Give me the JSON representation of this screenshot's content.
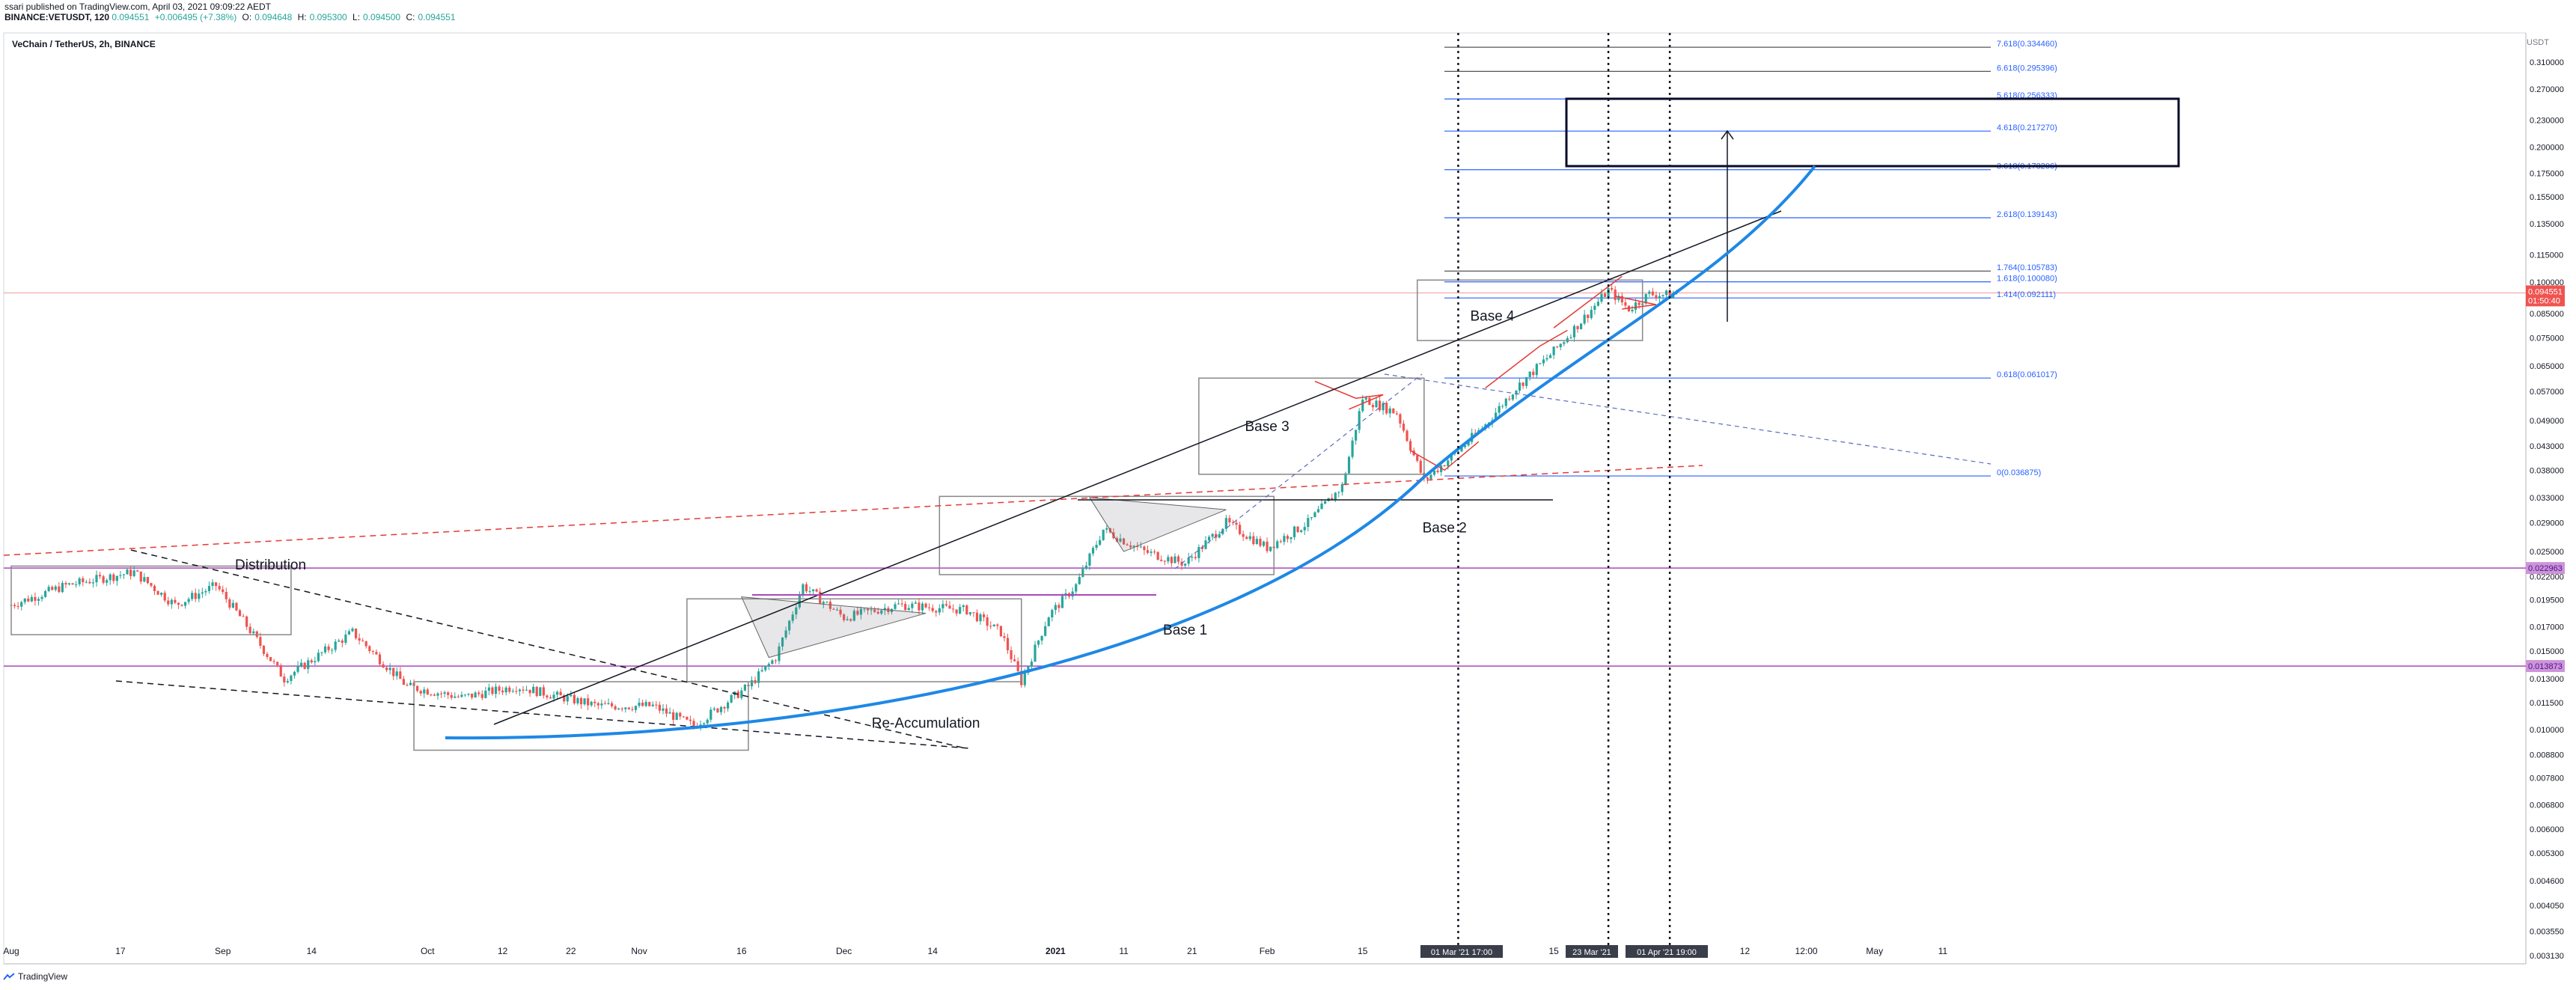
{
  "header": {
    "published": "ssari published on TradingView.com, April 03, 2021 09:09:22 AEDT",
    "symbol_line": "BINANCE:VETUSDT, 120",
    "last": "0.094551",
    "change": "+0.006495 (+7.38%)",
    "o_label": "O:",
    "o_val": "0.094648",
    "h_label": "H:",
    "h_val": "0.095300",
    "l_label": "L:",
    "l_val": "0.094500",
    "c_label": "C:",
    "c_val": "0.094551"
  },
  "footer": {
    "brand": "TradingView"
  },
  "colors": {
    "candle_up": "#26a69a",
    "candle_down": "#ef5350",
    "fib": "#2962ff",
    "parabola": "#1e88e5",
    "magenta": "#ab47bc",
    "box": "#888888"
  },
  "chart_data": {
    "type": "candlestick",
    "title": "VeChain / TetherUS, 2h, BINANCE",
    "axis_unit": "USDT",
    "y_scale": "log",
    "ylim": [
      0.003,
      0.36
    ],
    "y_ticks": [
      "0.310000",
      "0.270000",
      "0.230000",
      "0.200000",
      "0.175000",
      "0.155000",
      "0.135000",
      "0.115000",
      "0.100000",
      "0.085000",
      "0.075000",
      "0.065000",
      "0.057000",
      "0.049000",
      "0.043000",
      "0.038000",
      "0.033000",
      "0.029000",
      "0.025000",
      "0.022000",
      "0.019500",
      "0.017000",
      "0.015000",
      "0.013000",
      "0.011500",
      "0.010000",
      "0.008800",
      "0.007800",
      "0.006800",
      "0.006000",
      "0.005300",
      "0.004600",
      "0.004050",
      "0.003550",
      "0.003130"
    ],
    "y_tick_values": [
      0.31,
      0.27,
      0.23,
      0.2,
      0.175,
      0.155,
      0.135,
      0.115,
      0.1,
      0.085,
      0.075,
      0.065,
      0.057,
      0.049,
      0.043,
      0.038,
      0.033,
      0.029,
      0.025,
      0.022,
      0.0195,
      0.017,
      0.015,
      0.013,
      0.0115,
      0.01,
      0.0088,
      0.0078,
      0.0068,
      0.006,
      0.0053,
      0.0046,
      0.00405,
      0.00355,
      0.00313
    ],
    "x_ticks": [
      {
        "label": "Aug",
        "day": 0
      },
      {
        "label": "17",
        "day": 16
      },
      {
        "label": "Sep",
        "day": 31
      },
      {
        "label": "14",
        "day": 44
      },
      {
        "label": "Oct",
        "day": 61
      },
      {
        "label": "12",
        "day": 72
      },
      {
        "label": "22",
        "day": 82
      },
      {
        "label": "Nov",
        "day": 92
      },
      {
        "label": "16",
        "day": 107
      },
      {
        "label": "Dec",
        "day": 122
      },
      {
        "label": "14",
        "day": 135
      },
      {
        "label": "2021",
        "day": 153
      },
      {
        "label": "11",
        "day": 163
      },
      {
        "label": "21",
        "day": 173
      },
      {
        "label": "Feb",
        "day": 184
      },
      {
        "label": "15",
        "day": 198
      },
      {
        "label": "15",
        "day": 226
      },
      {
        "label": "12",
        "day": 254
      },
      {
        "label": "12:00",
        "day": 263
      },
      {
        "label": "May",
        "day": 273
      },
      {
        "label": "11",
        "day": 283
      }
    ],
    "last_price": {
      "value": 0.094551,
      "label": "0.094551",
      "countdown": "01:50:40"
    },
    "price_markers": [
      {
        "value": 0.022963,
        "label": "0.022963"
      },
      {
        "value": 0.013873,
        "label": "0.013873"
      }
    ],
    "fib_levels": [
      {
        "label": "7.618(0.334460)",
        "value": 0.33446
      },
      {
        "label": "6.618(0.295396)",
        "value": 0.295396
      },
      {
        "label": "5.618(0.256333)",
        "value": 0.256333
      },
      {
        "label": "4.618(0.217270)",
        "value": 0.21727
      },
      {
        "label": "3.618(0.178206)",
        "value": 0.178206
      },
      {
        "label": "2.618(0.139143)",
        "value": 0.139143
      },
      {
        "label": "1.764(0.105783)",
        "value": 0.105783
      },
      {
        "label": "1.618(0.100080)",
        "value": 0.10008
      },
      {
        "label": "1.414(0.092111)",
        "value": 0.092111
      },
      {
        "label": "0.618(0.061017)",
        "value": 0.061017
      },
      {
        "label": "0(0.036875)",
        "value": 0.036875
      }
    ],
    "vlines": [
      {
        "label": "01 Mar '21   17:00",
        "day": 212
      },
      {
        "label": "23 Mar '21",
        "day": 234
      },
      {
        "label": "01 Apr '21   19:00",
        "day": 243
      }
    ],
    "annotations": [
      {
        "text": "Distribution",
        "day": 38,
        "value": 0.0228
      },
      {
        "text": "Re-Accumulation",
        "day": 134,
        "value": 0.0101
      },
      {
        "text": "Base 1",
        "day": 172,
        "value": 0.0163
      },
      {
        "text": "Base 2",
        "day": 210,
        "value": 0.0276
      },
      {
        "text": "Base 3",
        "day": 184,
        "value": 0.0465
      },
      {
        "text": "Base 4",
        "day": 217,
        "value": 0.082
      }
    ],
    "path_keys": [
      [
        0,
        0.019
      ],
      [
        8,
        0.021
      ],
      [
        18,
        0.0225
      ],
      [
        24,
        0.019
      ],
      [
        30,
        0.021
      ],
      [
        34,
        0.0175
      ],
      [
        40,
        0.013
      ],
      [
        50,
        0.0165
      ],
      [
        58,
        0.0125
      ],
      [
        66,
        0.0118
      ],
      [
        74,
        0.0125
      ],
      [
        86,
        0.0113
      ],
      [
        94,
        0.0113
      ],
      [
        100,
        0.0102
      ],
      [
        108,
        0.0125
      ],
      [
        112,
        0.0145
      ],
      [
        116,
        0.021
      ],
      [
        122,
        0.0178
      ],
      [
        130,
        0.019
      ],
      [
        140,
        0.0185
      ],
      [
        145,
        0.0165
      ],
      [
        148,
        0.0128
      ],
      [
        152,
        0.018
      ],
      [
        156,
        0.021
      ],
      [
        160,
        0.028
      ],
      [
        166,
        0.025
      ],
      [
        172,
        0.0235
      ],
      [
        178,
        0.029
      ],
      [
        184,
        0.0255
      ],
      [
        190,
        0.029
      ],
      [
        195,
        0.035
      ],
      [
        198,
        0.055
      ],
      [
        203,
        0.051
      ],
      [
        207,
        0.036
      ],
      [
        212,
        0.042
      ],
      [
        216,
        0.048
      ],
      [
        220,
        0.057
      ],
      [
        226,
        0.07
      ],
      [
        231,
        0.085
      ],
      [
        234,
        0.096
      ],
      [
        237,
        0.087
      ],
      [
        240,
        0.094
      ],
      [
        243,
        0.0935
      ],
      [
        244,
        0.0946
      ]
    ]
  }
}
